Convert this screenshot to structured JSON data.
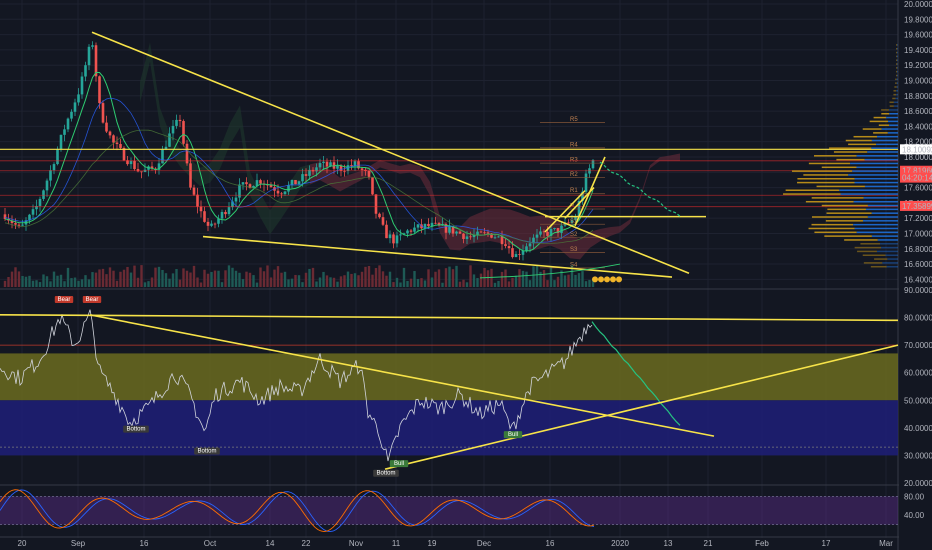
{
  "chart_data": [
    {
      "panel": "price",
      "type": "candlestick",
      "y_ticks": [
        "20.00000",
        "19.80000",
        "19.60000",
        "19.40000",
        "19.20000",
        "19.00000",
        "18.80000",
        "18.60000",
        "18.40000",
        "18.20000",
        "18.00000",
        "17.80000",
        "17.60000",
        "17.40000",
        "17.20000",
        "17.00000",
        "16.80000",
        "16.60000",
        "16.40000"
      ],
      "ylim": [
        16.3,
        20.0
      ],
      "price_tags": [
        {
          "text": "18.10092",
          "color": "#ffffff",
          "fg": "#131722"
        },
        {
          "text": "17.81960",
          "color": "#ff4d4d",
          "fg": "#ffffff"
        },
        {
          "text": "04:20:14",
          "color": "#ff4d4d",
          "fg": "#ffffff"
        },
        {
          "text": "17.35899",
          "color": "#ff4d4d",
          "fg": "#ffffff"
        }
      ],
      "pivot_labels": [
        "R5",
        "R4",
        "R3",
        "R2",
        "R1",
        "P",
        "S1",
        "S2",
        "S3",
        "S4"
      ],
      "pivot_levels": [
        18.45,
        18.12,
        17.92,
        17.73,
        17.52,
        17.32,
        17.12,
        16.95,
        16.75,
        16.55
      ],
      "horizontal_lines": [
        {
          "value": 18.1,
          "color": "#f7e349"
        },
        {
          "value": 17.35,
          "color": "#ff2e2e"
        },
        {
          "value": 17.5,
          "color": "#ff2e2e"
        },
        {
          "value": 17.82,
          "color": "#ff2e2e"
        },
        {
          "value": 17.95,
          "color": "#ff2e2e"
        }
      ]
    },
    {
      "panel": "rsi",
      "type": "line",
      "y_ticks": [
        "90.00000",
        "80.00000",
        "70.00000",
        "60.00000",
        "50.00000",
        "40.00000",
        "30.00000",
        "20.00000"
      ],
      "ylim": [
        20,
        90
      ],
      "zones": [
        {
          "from": 50,
          "to": 67,
          "color": "#6b6b1e"
        },
        {
          "from": 30,
          "to": 50,
          "color": "#1e1e78"
        }
      ],
      "labels": [
        "Bear",
        "Bear",
        "Bottom",
        "Bottom",
        "Bottom",
        "Bull",
        "Bull"
      ],
      "projection_color": "#26c281"
    },
    {
      "panel": "stoch_rsi",
      "type": "line",
      "y_ticks": [
        "80.00",
        "40.00"
      ],
      "ylim": [
        0,
        100
      ],
      "series_colors": [
        "#2962ff",
        "#ff6d00"
      ]
    }
  ],
  "x_ticks": [
    "20",
    "Sep",
    "16",
    "Oct",
    "14",
    "22",
    "Nov",
    "11",
    "19",
    "Dec",
    "16",
    "2020",
    "13",
    "21",
    "Feb",
    "17",
    "Mar"
  ],
  "colors": {
    "up": "#26a69a",
    "down": "#ef5350",
    "trendline": "#f7e349",
    "cloud_bear": "#6e2b3a",
    "cloud_bull": "#1f3a2e",
    "profile_a": "#d4a017",
    "profile_b": "#1e6fd9"
  }
}
